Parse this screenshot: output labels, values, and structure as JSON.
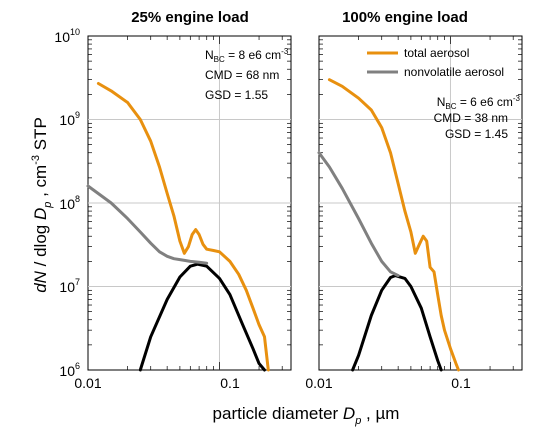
{
  "chart_data": [
    {
      "type": "line",
      "title": "25% engine load",
      "xlabel": "particle diameter  D_p ,  µm",
      "ylabel": "dN / dlog D_p ,  cm^-3  STP",
      "x_scale": "log",
      "y_scale": "log",
      "xlim": [
        0.01,
        0.35
      ],
      "ylim": [
        1000000,
        10000000000
      ],
      "x_ticks": [
        "0.01",
        "0.1"
      ],
      "y_ticks": [
        6,
        7,
        8,
        9,
        10
      ],
      "grid": "horizontal at each decade, vertical at 0.1",
      "annotations": [
        "N_BC = 8 e6 cm^-3",
        "CMD = 68 nm",
        "GSD = 1.55"
      ],
      "series": [
        {
          "name": "total aerosol",
          "color": "#E8900F",
          "x": [
            0.012,
            0.015,
            0.02,
            0.025,
            0.03,
            0.035,
            0.04,
            0.045,
            0.05,
            0.054,
            0.058,
            0.062,
            0.066,
            0.07,
            0.075,
            0.08,
            0.09,
            0.1,
            0.12,
            0.14,
            0.16,
            0.18,
            0.2,
            0.22,
            0.235
          ],
          "y": [
            2700000000,
            2200000000,
            1600000000,
            1000000000,
            550000000,
            270000000,
            130000000,
            70000000,
            35000000,
            25000000,
            30000000,
            42000000,
            48000000,
            42000000,
            32000000,
            28000000,
            27000000,
            26000000,
            20000000,
            14000000,
            9000000,
            5500000,
            3500000,
            2500000,
            1000000
          ]
        },
        {
          "name": "nonvolatile aerosol",
          "color": "#808080",
          "x": [
            0.01,
            0.015,
            0.02,
            0.025,
            0.03,
            0.035,
            0.04,
            0.045,
            0.05,
            0.055,
            0.06,
            0.07,
            0.08
          ],
          "y": [
            160000000,
            100000000,
            65000000,
            45000000,
            33000000,
            26000000,
            23000000,
            21500000,
            21000000,
            20500000,
            20000000,
            19500000,
            19000000
          ]
        },
        {
          "name": "",
          "color": "#000000",
          "x": [
            0.025,
            0.03,
            0.04,
            0.05,
            0.06,
            0.068,
            0.08,
            0.1,
            0.12,
            0.15,
            0.18,
            0.2,
            0.22
          ],
          "y": [
            1000000,
            2500000,
            7000000,
            13000000,
            17500000,
            18500000,
            17500000,
            12500000,
            8000000,
            3500000,
            1800000,
            1200000,
            1000000
          ]
        }
      ]
    },
    {
      "type": "line",
      "title": "100% engine load",
      "xlabel": "particle diameter  D_p ,  µm",
      "x_scale": "log",
      "y_scale": "log",
      "xlim": [
        0.01,
        0.35
      ],
      "ylim": [
        1000000,
        10000000000
      ],
      "x_ticks": [
        "0.01",
        "0.1"
      ],
      "legend": "top-right",
      "annotations": [
        "N_BC = 6 e6 cm^-3",
        "CMD = 38 nm",
        "GSD = 1.45"
      ],
      "series": [
        {
          "name": "total aerosol",
          "color": "#E8900F",
          "x": [
            0.012,
            0.015,
            0.02,
            0.025,
            0.03,
            0.035,
            0.04,
            0.045,
            0.05,
            0.054,
            0.058,
            0.062,
            0.066,
            0.07,
            0.075,
            0.08,
            0.085,
            0.09,
            0.1,
            0.11,
            0.115
          ],
          "y": [
            3000000000,
            2500000000,
            1800000000,
            1300000000,
            800000000,
            400000000,
            170000000,
            80000000,
            45000000,
            25000000,
            32000000,
            40000000,
            35000000,
            17000000,
            15000000,
            8000000,
            4500000,
            3000000,
            1800000,
            1200000,
            1000000
          ]
        },
        {
          "name": "nonvolatile aerosol",
          "color": "#808080",
          "x": [
            0.01,
            0.012,
            0.015,
            0.02,
            0.025,
            0.03,
            0.035,
            0.04
          ],
          "y": [
            400000000,
            270000000,
            150000000,
            65000000,
            33000000,
            20000000,
            15000000,
            13500000
          ]
        },
        {
          "name": "",
          "color": "#000000",
          "x": [
            0.018,
            0.02,
            0.025,
            0.03,
            0.035,
            0.038,
            0.045,
            0.05,
            0.06,
            0.07,
            0.08,
            0.085
          ],
          "y": [
            1000000,
            1500000,
            4500000,
            9000000,
            12800000,
            13500000,
            12500000,
            10000000,
            5500000,
            2500000,
            1300000,
            1000000
          ]
        }
      ]
    }
  ],
  "text": {
    "title_left": "25% engine load",
    "title_right": "100% engine load",
    "legend_total": "total aerosol",
    "legend_nonvol": "nonvolatile aerosol",
    "ann_left_nbc": "N",
    "ann_left_nbc_sub": "BC",
    "ann_left_nbc_val": " = 8 e6 cm",
    "ann_left_nbc_exp": "-3",
    "ann_left_cmd": "CMD = 68 nm",
    "ann_left_gsd": "GSD = 1.55",
    "ann_right_nbc": "N",
    "ann_right_nbc_sub": "BC",
    "ann_right_nbc_val": " = 6 e6 cm",
    "ann_right_nbc_exp": "-3",
    "ann_right_cmd": "CMD = 38 nm",
    "ann_right_gsd": "GSD = 1.45",
    "xlabel_main": "particle diameter  ",
    "xlabel_var": "D",
    "xlabel_sub": "p",
    "xlabel_unit": " ,  µm",
    "ylabel_dn": "dN",
    "ylabel_mid": " / dlog ",
    "ylabel_var": "D",
    "ylabel_sub": "p",
    "ylabel_sep": " ,  cm",
    "ylabel_exp": "-3",
    "ylabel_stp": "  STP",
    "ytick_base": "10",
    "ytick_exps": [
      "10",
      "9",
      "8",
      "7",
      "6"
    ],
    "xticks_left": [
      "0.01",
      "0.1"
    ],
    "xticks_right": [
      "0.01",
      "0.1"
    ]
  }
}
